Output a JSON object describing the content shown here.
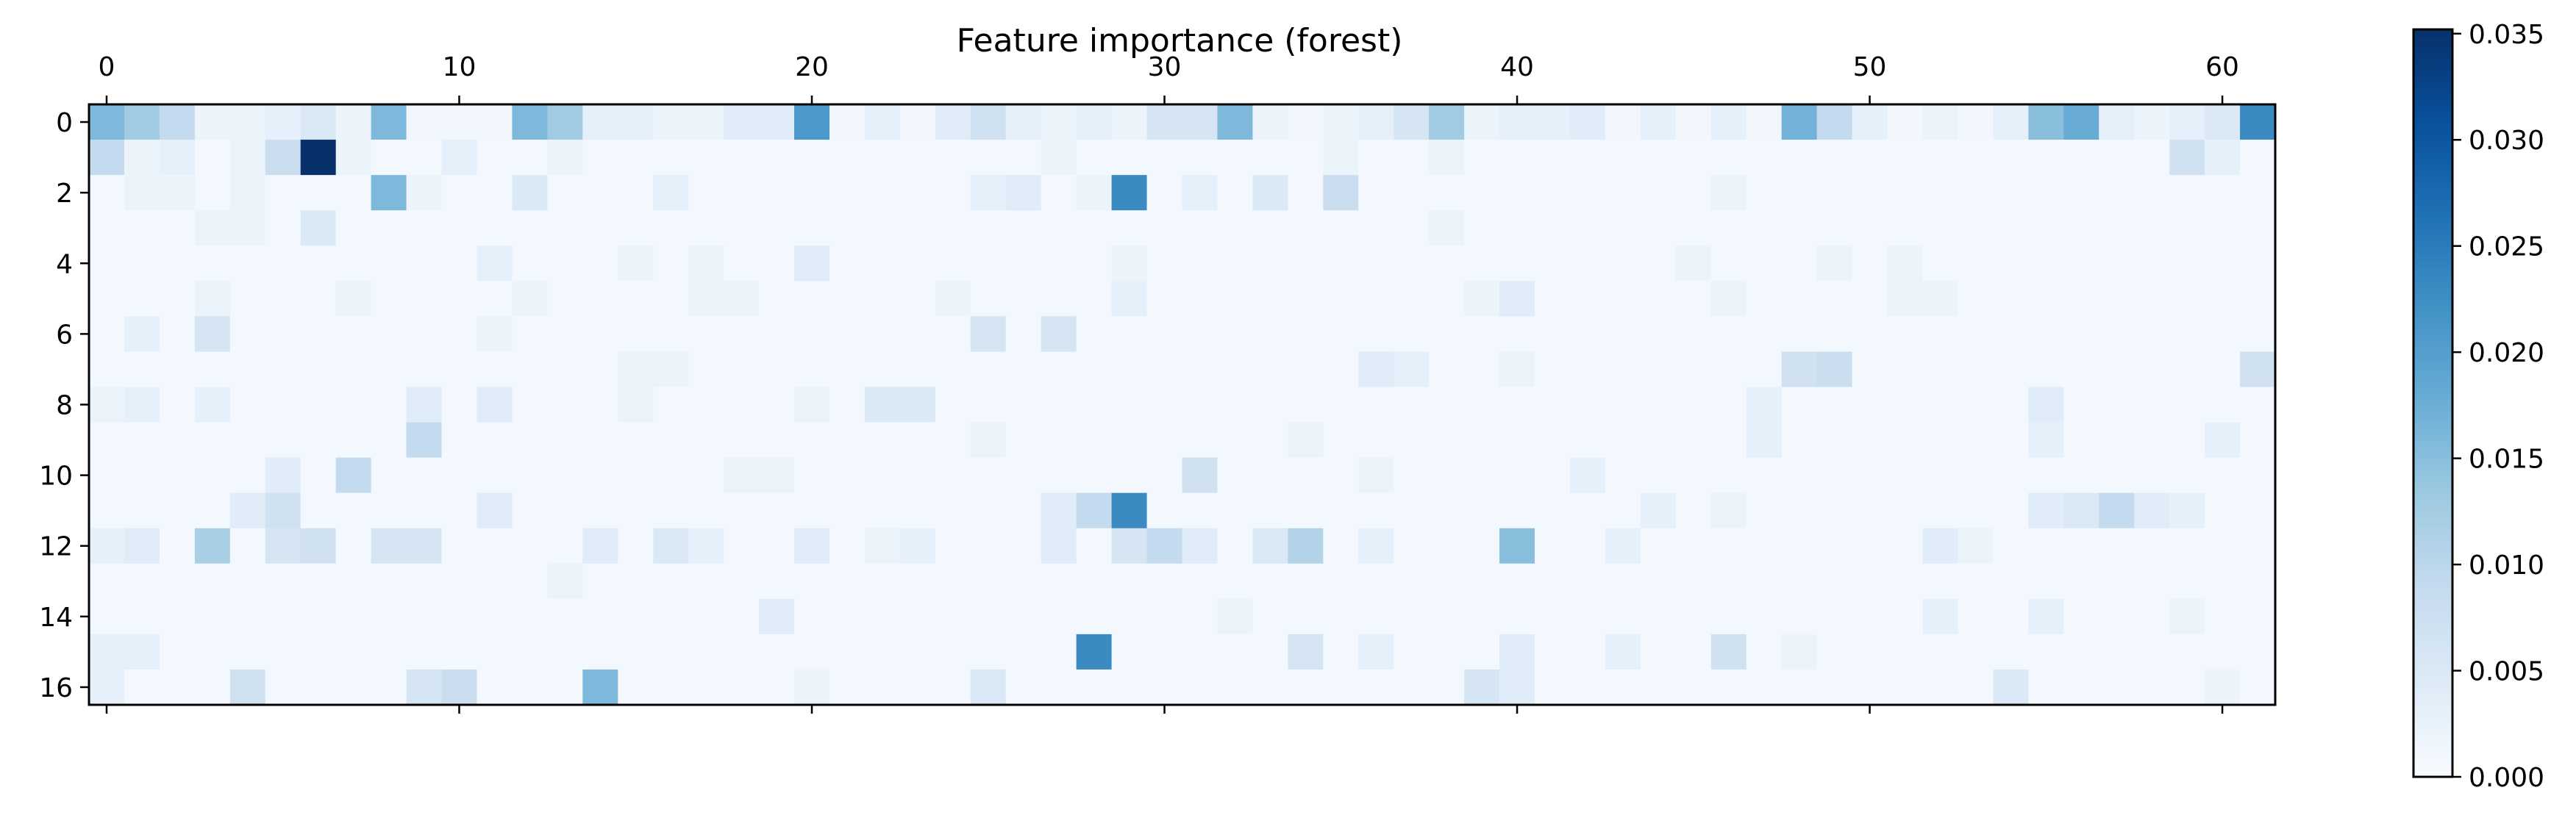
{
  "chart_data": {
    "type": "heatmap",
    "title": "Feature importance (forest)",
    "xlabel": "",
    "ylabel": "",
    "n_cols": 62,
    "n_rows": 17,
    "x_ticks": [
      0,
      10,
      20,
      30,
      40,
      50,
      60
    ],
    "y_ticks": [
      0,
      2,
      4,
      6,
      8,
      10,
      12,
      14,
      16
    ],
    "colormap": "Blues",
    "colorbar": {
      "min": 0.0,
      "max": 0.0352,
      "ticks": [
        0.0,
        0.005,
        0.01,
        0.015,
        0.02,
        0.025,
        0.03,
        0.035
      ],
      "tick_labels": [
        "0.000",
        "0.005",
        "0.010",
        "0.015",
        "0.020",
        "0.025",
        "0.030",
        "0.035"
      ]
    },
    "default_value": 0.0008,
    "cells": [
      {
        "row": 0,
        "col": 0,
        "v": 0.016
      },
      {
        "row": 0,
        "col": 1,
        "v": 0.013
      },
      {
        "row": 0,
        "col": 2,
        "v": 0.009
      },
      {
        "row": 0,
        "col": 3,
        "v": 0.002
      },
      {
        "row": 0,
        "col": 4,
        "v": 0.002
      },
      {
        "row": 0,
        "col": 5,
        "v": 0.003
      },
      {
        "row": 0,
        "col": 6,
        "v": 0.005
      },
      {
        "row": 0,
        "col": 7,
        "v": 0.002
      },
      {
        "row": 0,
        "col": 8,
        "v": 0.016
      },
      {
        "row": 0,
        "col": 9,
        "v": 0.001
      },
      {
        "row": 0,
        "col": 10,
        "v": 0.001
      },
      {
        "row": 0,
        "col": 11,
        "v": 0.001
      },
      {
        "row": 0,
        "col": 12,
        "v": 0.016
      },
      {
        "row": 0,
        "col": 13,
        "v": 0.013
      },
      {
        "row": 0,
        "col": 14,
        "v": 0.003
      },
      {
        "row": 0,
        "col": 15,
        "v": 0.003
      },
      {
        "row": 0,
        "col": 16,
        "v": 0.002
      },
      {
        "row": 0,
        "col": 17,
        "v": 0.002
      },
      {
        "row": 0,
        "col": 18,
        "v": 0.004
      },
      {
        "row": 0,
        "col": 19,
        "v": 0.004
      },
      {
        "row": 0,
        "col": 20,
        "v": 0.021
      },
      {
        "row": 0,
        "col": 21,
        "v": 0.001
      },
      {
        "row": 0,
        "col": 22,
        "v": 0.003
      },
      {
        "row": 0,
        "col": 23,
        "v": 0.001
      },
      {
        "row": 0,
        "col": 24,
        "v": 0.004
      },
      {
        "row": 0,
        "col": 25,
        "v": 0.007
      },
      {
        "row": 0,
        "col": 26,
        "v": 0.003
      },
      {
        "row": 0,
        "col": 27,
        "v": 0.002
      },
      {
        "row": 0,
        "col": 28,
        "v": 0.003
      },
      {
        "row": 0,
        "col": 29,
        "v": 0.002
      },
      {
        "row": 0,
        "col": 30,
        "v": 0.006
      },
      {
        "row": 0,
        "col": 31,
        "v": 0.006
      },
      {
        "row": 0,
        "col": 32,
        "v": 0.016
      },
      {
        "row": 0,
        "col": 33,
        "v": 0.002
      },
      {
        "row": 0,
        "col": 34,
        "v": 0.001
      },
      {
        "row": 0,
        "col": 35,
        "v": 0.002
      },
      {
        "row": 0,
        "col": 36,
        "v": 0.003
      },
      {
        "row": 0,
        "col": 37,
        "v": 0.006
      },
      {
        "row": 0,
        "col": 38,
        "v": 0.013
      },
      {
        "row": 0,
        "col": 39,
        "v": 0.002
      },
      {
        "row": 0,
        "col": 40,
        "v": 0.003
      },
      {
        "row": 0,
        "col": 41,
        "v": 0.003
      },
      {
        "row": 0,
        "col": 42,
        "v": 0.004
      },
      {
        "row": 0,
        "col": 43,
        "v": 0.001
      },
      {
        "row": 0,
        "col": 44,
        "v": 0.003
      },
      {
        "row": 0,
        "col": 45,
        "v": 0.001
      },
      {
        "row": 0,
        "col": 46,
        "v": 0.003
      },
      {
        "row": 0,
        "col": 47,
        "v": 0.001
      },
      {
        "row": 0,
        "col": 48,
        "v": 0.017
      },
      {
        "row": 0,
        "col": 49,
        "v": 0.009
      },
      {
        "row": 0,
        "col": 50,
        "v": 0.003
      },
      {
        "row": 0,
        "col": 51,
        "v": 0.001
      },
      {
        "row": 0,
        "col": 52,
        "v": 0.002
      },
      {
        "row": 0,
        "col": 53,
        "v": 0.001
      },
      {
        "row": 0,
        "col": 54,
        "v": 0.003
      },
      {
        "row": 0,
        "col": 55,
        "v": 0.015
      },
      {
        "row": 0,
        "col": 56,
        "v": 0.018
      },
      {
        "row": 0,
        "col": 57,
        "v": 0.003
      },
      {
        "row": 0,
        "col": 58,
        "v": 0.002
      },
      {
        "row": 0,
        "col": 59,
        "v": 0.003
      },
      {
        "row": 0,
        "col": 60,
        "v": 0.005
      },
      {
        "row": 0,
        "col": 61,
        "v": 0.023
      },
      {
        "row": 1,
        "col": 0,
        "v": 0.009
      },
      {
        "row": 1,
        "col": 1,
        "v": 0.002
      },
      {
        "row": 1,
        "col": 2,
        "v": 0.003
      },
      {
        "row": 1,
        "col": 4,
        "v": 0.002
      },
      {
        "row": 1,
        "col": 5,
        "v": 0.008
      },
      {
        "row": 1,
        "col": 6,
        "v": 0.0352
      },
      {
        "row": 1,
        "col": 7,
        "v": 0.002
      },
      {
        "row": 1,
        "col": 10,
        "v": 0.003
      },
      {
        "row": 1,
        "col": 13,
        "v": 0.002
      },
      {
        "row": 1,
        "col": 27,
        "v": 0.002
      },
      {
        "row": 1,
        "col": 35,
        "v": 0.002
      },
      {
        "row": 1,
        "col": 38,
        "v": 0.002
      },
      {
        "row": 1,
        "col": 59,
        "v": 0.007
      },
      {
        "row": 1,
        "col": 60,
        "v": 0.003
      },
      {
        "row": 2,
        "col": 1,
        "v": 0.002
      },
      {
        "row": 2,
        "col": 2,
        "v": 0.002
      },
      {
        "row": 2,
        "col": 4,
        "v": 0.002
      },
      {
        "row": 2,
        "col": 8,
        "v": 0.016
      },
      {
        "row": 2,
        "col": 9,
        "v": 0.002
      },
      {
        "row": 2,
        "col": 12,
        "v": 0.005
      },
      {
        "row": 2,
        "col": 16,
        "v": 0.003
      },
      {
        "row": 2,
        "col": 25,
        "v": 0.003
      },
      {
        "row": 2,
        "col": 26,
        "v": 0.004
      },
      {
        "row": 2,
        "col": 28,
        "v": 0.002
      },
      {
        "row": 2,
        "col": 29,
        "v": 0.023
      },
      {
        "row": 2,
        "col": 31,
        "v": 0.003
      },
      {
        "row": 2,
        "col": 33,
        "v": 0.005
      },
      {
        "row": 2,
        "col": 35,
        "v": 0.008
      },
      {
        "row": 2,
        "col": 46,
        "v": 0.002
      },
      {
        "row": 3,
        "col": 3,
        "v": 0.002
      },
      {
        "row": 3,
        "col": 4,
        "v": 0.002
      },
      {
        "row": 3,
        "col": 6,
        "v": 0.005
      },
      {
        "row": 3,
        "col": 38,
        "v": 0.002
      },
      {
        "row": 4,
        "col": 11,
        "v": 0.003
      },
      {
        "row": 4,
        "col": 15,
        "v": 0.002
      },
      {
        "row": 4,
        "col": 17,
        "v": 0.002
      },
      {
        "row": 4,
        "col": 20,
        "v": 0.004
      },
      {
        "row": 4,
        "col": 29,
        "v": 0.002
      },
      {
        "row": 4,
        "col": 45,
        "v": 0.002
      },
      {
        "row": 4,
        "col": 49,
        "v": 0.002
      },
      {
        "row": 4,
        "col": 51,
        "v": 0.002
      },
      {
        "row": 5,
        "col": 3,
        "v": 0.002
      },
      {
        "row": 5,
        "col": 7,
        "v": 0.002
      },
      {
        "row": 5,
        "col": 12,
        "v": 0.002
      },
      {
        "row": 5,
        "col": 17,
        "v": 0.002
      },
      {
        "row": 5,
        "col": 18,
        "v": 0.002
      },
      {
        "row": 5,
        "col": 24,
        "v": 0.002
      },
      {
        "row": 5,
        "col": 29,
        "v": 0.003
      },
      {
        "row": 5,
        "col": 39,
        "v": 0.002
      },
      {
        "row": 5,
        "col": 40,
        "v": 0.004
      },
      {
        "row": 5,
        "col": 46,
        "v": 0.002
      },
      {
        "row": 5,
        "col": 51,
        "v": 0.002
      },
      {
        "row": 5,
        "col": 52,
        "v": 0.002
      },
      {
        "row": 6,
        "col": 1,
        "v": 0.003
      },
      {
        "row": 6,
        "col": 3,
        "v": 0.006
      },
      {
        "row": 6,
        "col": 11,
        "v": 0.002
      },
      {
        "row": 6,
        "col": 25,
        "v": 0.006
      },
      {
        "row": 6,
        "col": 27,
        "v": 0.006
      },
      {
        "row": 7,
        "col": 15,
        "v": 0.002
      },
      {
        "row": 7,
        "col": 16,
        "v": 0.002
      },
      {
        "row": 7,
        "col": 36,
        "v": 0.004
      },
      {
        "row": 7,
        "col": 37,
        "v": 0.003
      },
      {
        "row": 7,
        "col": 40,
        "v": 0.002
      },
      {
        "row": 7,
        "col": 48,
        "v": 0.007
      },
      {
        "row": 7,
        "col": 49,
        "v": 0.008
      },
      {
        "row": 7,
        "col": 61,
        "v": 0.007
      },
      {
        "row": 8,
        "col": 0,
        "v": 0.002
      },
      {
        "row": 8,
        "col": 1,
        "v": 0.003
      },
      {
        "row": 8,
        "col": 3,
        "v": 0.003
      },
      {
        "row": 8,
        "col": 9,
        "v": 0.004
      },
      {
        "row": 8,
        "col": 11,
        "v": 0.004
      },
      {
        "row": 8,
        "col": 15,
        "v": 0.002
      },
      {
        "row": 8,
        "col": 20,
        "v": 0.002
      },
      {
        "row": 8,
        "col": 22,
        "v": 0.005
      },
      {
        "row": 8,
        "col": 23,
        "v": 0.005
      },
      {
        "row": 8,
        "col": 47,
        "v": 0.003
      },
      {
        "row": 8,
        "col": 55,
        "v": 0.004
      },
      {
        "row": 9,
        "col": 9,
        "v": 0.009
      },
      {
        "row": 9,
        "col": 25,
        "v": 0.002
      },
      {
        "row": 9,
        "col": 34,
        "v": 0.002
      },
      {
        "row": 9,
        "col": 47,
        "v": 0.003
      },
      {
        "row": 9,
        "col": 55,
        "v": 0.003
      },
      {
        "row": 9,
        "col": 60,
        "v": 0.003
      },
      {
        "row": 10,
        "col": 5,
        "v": 0.004
      },
      {
        "row": 10,
        "col": 7,
        "v": 0.009
      },
      {
        "row": 10,
        "col": 18,
        "v": 0.002
      },
      {
        "row": 10,
        "col": 19,
        "v": 0.002
      },
      {
        "row": 10,
        "col": 31,
        "v": 0.007
      },
      {
        "row": 10,
        "col": 36,
        "v": 0.002
      },
      {
        "row": 10,
        "col": 42,
        "v": 0.003
      },
      {
        "row": 11,
        "col": 4,
        "v": 0.004
      },
      {
        "row": 11,
        "col": 5,
        "v": 0.007
      },
      {
        "row": 11,
        "col": 11,
        "v": 0.004
      },
      {
        "row": 11,
        "col": 27,
        "v": 0.004
      },
      {
        "row": 11,
        "col": 28,
        "v": 0.009
      },
      {
        "row": 11,
        "col": 29,
        "v": 0.023
      },
      {
        "row": 11,
        "col": 44,
        "v": 0.003
      },
      {
        "row": 11,
        "col": 46,
        "v": 0.002
      },
      {
        "row": 11,
        "col": 55,
        "v": 0.004
      },
      {
        "row": 11,
        "col": 56,
        "v": 0.005
      },
      {
        "row": 11,
        "col": 57,
        "v": 0.009
      },
      {
        "row": 11,
        "col": 58,
        "v": 0.004
      },
      {
        "row": 11,
        "col": 59,
        "v": 0.003
      },
      {
        "row": 12,
        "col": 0,
        "v": 0.003
      },
      {
        "row": 12,
        "col": 1,
        "v": 0.004
      },
      {
        "row": 12,
        "col": 3,
        "v": 0.012
      },
      {
        "row": 12,
        "col": 5,
        "v": 0.006
      },
      {
        "row": 12,
        "col": 6,
        "v": 0.007
      },
      {
        "row": 12,
        "col": 8,
        "v": 0.006
      },
      {
        "row": 12,
        "col": 9,
        "v": 0.006
      },
      {
        "row": 12,
        "col": 14,
        "v": 0.004
      },
      {
        "row": 12,
        "col": 16,
        "v": 0.005
      },
      {
        "row": 12,
        "col": 17,
        "v": 0.003
      },
      {
        "row": 12,
        "col": 20,
        "v": 0.004
      },
      {
        "row": 12,
        "col": 22,
        "v": 0.002
      },
      {
        "row": 12,
        "col": 23,
        "v": 0.003
      },
      {
        "row": 12,
        "col": 27,
        "v": 0.004
      },
      {
        "row": 12,
        "col": 29,
        "v": 0.006
      },
      {
        "row": 12,
        "col": 30,
        "v": 0.009
      },
      {
        "row": 12,
        "col": 31,
        "v": 0.004
      },
      {
        "row": 12,
        "col": 33,
        "v": 0.005
      },
      {
        "row": 12,
        "col": 34,
        "v": 0.011
      },
      {
        "row": 12,
        "col": 36,
        "v": 0.003
      },
      {
        "row": 12,
        "col": 40,
        "v": 0.015
      },
      {
        "row": 12,
        "col": 43,
        "v": 0.003
      },
      {
        "row": 12,
        "col": 52,
        "v": 0.004
      },
      {
        "row": 12,
        "col": 53,
        "v": 0.002
      },
      {
        "row": 13,
        "col": 13,
        "v": 0.002
      },
      {
        "row": 14,
        "col": 19,
        "v": 0.004
      },
      {
        "row": 14,
        "col": 32,
        "v": 0.002
      },
      {
        "row": 14,
        "col": 52,
        "v": 0.003
      },
      {
        "row": 14,
        "col": 55,
        "v": 0.003
      },
      {
        "row": 14,
        "col": 59,
        "v": 0.002
      },
      {
        "row": 15,
        "col": 0,
        "v": 0.003
      },
      {
        "row": 15,
        "col": 1,
        "v": 0.003
      },
      {
        "row": 15,
        "col": 28,
        "v": 0.023
      },
      {
        "row": 15,
        "col": 34,
        "v": 0.006
      },
      {
        "row": 15,
        "col": 36,
        "v": 0.003
      },
      {
        "row": 15,
        "col": 40,
        "v": 0.004
      },
      {
        "row": 15,
        "col": 43,
        "v": 0.003
      },
      {
        "row": 15,
        "col": 46,
        "v": 0.007
      },
      {
        "row": 15,
        "col": 48,
        "v": 0.002
      },
      {
        "row": 16,
        "col": 0,
        "v": 0.003
      },
      {
        "row": 16,
        "col": 4,
        "v": 0.007
      },
      {
        "row": 16,
        "col": 9,
        "v": 0.006
      },
      {
        "row": 16,
        "col": 10,
        "v": 0.008
      },
      {
        "row": 16,
        "col": 14,
        "v": 0.016
      },
      {
        "row": 16,
        "col": 20,
        "v": 0.002
      },
      {
        "row": 16,
        "col": 25,
        "v": 0.005
      },
      {
        "row": 16,
        "col": 39,
        "v": 0.006
      },
      {
        "row": 16,
        "col": 40,
        "v": 0.004
      },
      {
        "row": 16,
        "col": 54,
        "v": 0.005
      },
      {
        "row": 16,
        "col": 60,
        "v": 0.002
      }
    ]
  }
}
